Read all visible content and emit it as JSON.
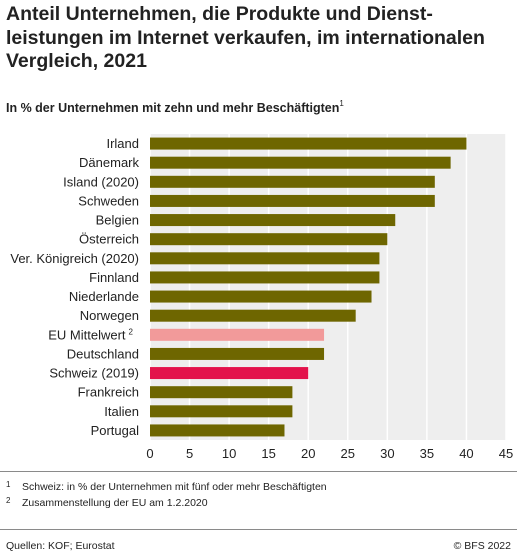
{
  "title": "Anteil Unternehmen, die Produkte und Dienst- leistungen im Internet verkaufen, im internationalen Vergleich, 2021",
  "subtitle": "In % der Unternehmen mit zehn und mehr Beschäftigten",
  "subtitle_note": "1",
  "chart_data": {
    "type": "bar",
    "orientation": "horizontal",
    "categories": [
      "Irland",
      "Dänemark",
      "Island (2020)",
      "Schweden",
      "Belgien",
      "Österreich",
      "Ver. Königreich (2020)",
      "Finnland",
      "Niederlande",
      "Norwegen",
      "EU Mittelwert",
      "Deutschland",
      "Schweiz (2019)",
      "Frankreich",
      "Italien",
      "Portugal"
    ],
    "category_notes": [
      "",
      "",
      "",
      "",
      "",
      "",
      "",
      "",
      "",
      "",
      "2",
      "",
      "",
      "",
      "",
      ""
    ],
    "values": [
      40,
      38,
      36,
      36,
      31,
      30,
      29,
      29,
      28,
      26,
      22,
      22,
      20,
      18,
      18,
      17
    ],
    "xlim": [
      0,
      45
    ],
    "xticks": [
      "0",
      "5",
      "10",
      "15",
      "20",
      "25",
      "30",
      "35",
      "40",
      "45"
    ],
    "grid": "vertical",
    "colors": {
      "default": "#6e6600",
      "eu": "#f29a9a",
      "switzerland": "#e3124b",
      "plot_background": "#eeeeee",
      "grid": "#ffffff"
    },
    "highlight": {
      "EU Mittelwert": "eu",
      "Schweiz (2019)": "switzerland"
    }
  },
  "footnotes": [
    {
      "mark": "1",
      "text": "Schweiz: in % der Unternehmen mit fünf oder mehr Beschäftigten"
    },
    {
      "mark": "2",
      "text": "Zusammenstellung der EU am 1.2.2020"
    }
  ],
  "source": "Quellen: KOF; Eurostat",
  "copyright": "© BFS 2022"
}
